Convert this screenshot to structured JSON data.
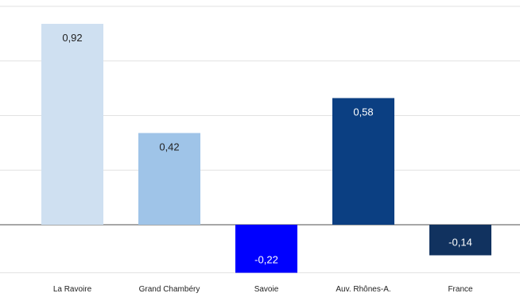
{
  "chart_data": {
    "type": "bar",
    "categories": [
      "La Ravoire",
      "Grand Chambéry",
      "Savoie",
      "Auv. Rhônes-A.",
      "France"
    ],
    "values": [
      0.92,
      0.42,
      -0.22,
      0.58,
      -0.14
    ],
    "data_labels": [
      "0,92",
      "0,42",
      "-0,22",
      "0,58",
      "-0,14"
    ],
    "bar_colors": [
      "#cfe0f1",
      "#9fc4e8",
      "#0000ff",
      "#0b3f82",
      "#11325f"
    ],
    "label_colors": [
      "#222222",
      "#222222",
      "#ffffff",
      "#ffffff",
      "#ffffff"
    ],
    "title": "",
    "xlabel": "",
    "ylabel": "",
    "ylim": [
      -0.22,
      1.0
    ],
    "grid_values": [
      -0.22,
      0,
      0.25,
      0.5,
      0.75,
      1.0
    ],
    "grid": true,
    "legend": "none"
  }
}
